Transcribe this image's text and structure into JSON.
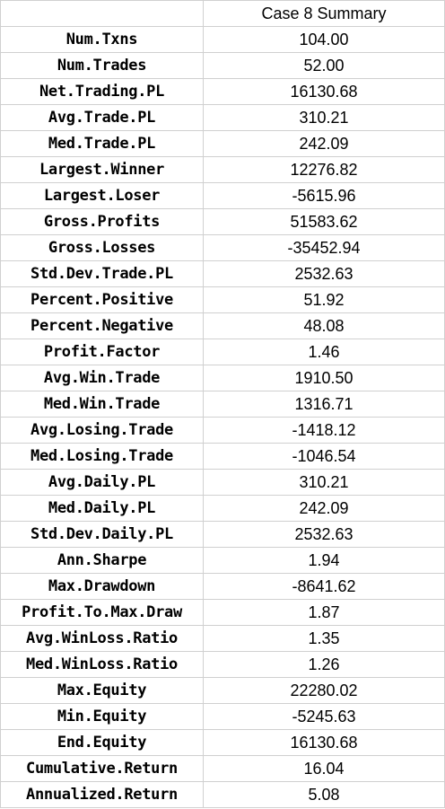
{
  "table": {
    "header": "Case 8 Summary",
    "rows": [
      {
        "label": "Num.Txns",
        "value": "104.00"
      },
      {
        "label": "Num.Trades",
        "value": "52.00"
      },
      {
        "label": "Net.Trading.PL",
        "value": "16130.68"
      },
      {
        "label": "Avg.Trade.PL",
        "value": "310.21"
      },
      {
        "label": "Med.Trade.PL",
        "value": "242.09"
      },
      {
        "label": "Largest.Winner",
        "value": "12276.82"
      },
      {
        "label": "Largest.Loser",
        "value": "-5615.96"
      },
      {
        "label": "Gross.Profits",
        "value": "51583.62"
      },
      {
        "label": "Gross.Losses",
        "value": "-35452.94"
      },
      {
        "label": "Std.Dev.Trade.PL",
        "value": "2532.63"
      },
      {
        "label": "Percent.Positive",
        "value": "51.92"
      },
      {
        "label": "Percent.Negative",
        "value": "48.08"
      },
      {
        "label": "Profit.Factor",
        "value": "1.46"
      },
      {
        "label": "Avg.Win.Trade",
        "value": "1910.50"
      },
      {
        "label": "Med.Win.Trade",
        "value": "1316.71"
      },
      {
        "label": "Avg.Losing.Trade",
        "value": "-1418.12"
      },
      {
        "label": "Med.Losing.Trade",
        "value": "-1046.54"
      },
      {
        "label": "Avg.Daily.PL",
        "value": "310.21"
      },
      {
        "label": "Med.Daily.PL",
        "value": "242.09"
      },
      {
        "label": "Std.Dev.Daily.PL",
        "value": "2532.63"
      },
      {
        "label": "Ann.Sharpe",
        "value": "1.94"
      },
      {
        "label": "Max.Drawdown",
        "value": "-8641.62"
      },
      {
        "label": "Profit.To.Max.Draw",
        "value": "1.87"
      },
      {
        "label": "Avg.WinLoss.Ratio",
        "value": "1.35"
      },
      {
        "label": "Med.WinLoss.Ratio",
        "value": "1.26"
      },
      {
        "label": "Max.Equity",
        "value": "22280.02"
      },
      {
        "label": "Min.Equity",
        "value": "-5245.63"
      },
      {
        "label": "End.Equity",
        "value": "16130.68"
      },
      {
        "label": "Cumulative.Return",
        "value": "16.04"
      },
      {
        "label": "Annualized.Return",
        "value": "5.08"
      }
    ]
  }
}
